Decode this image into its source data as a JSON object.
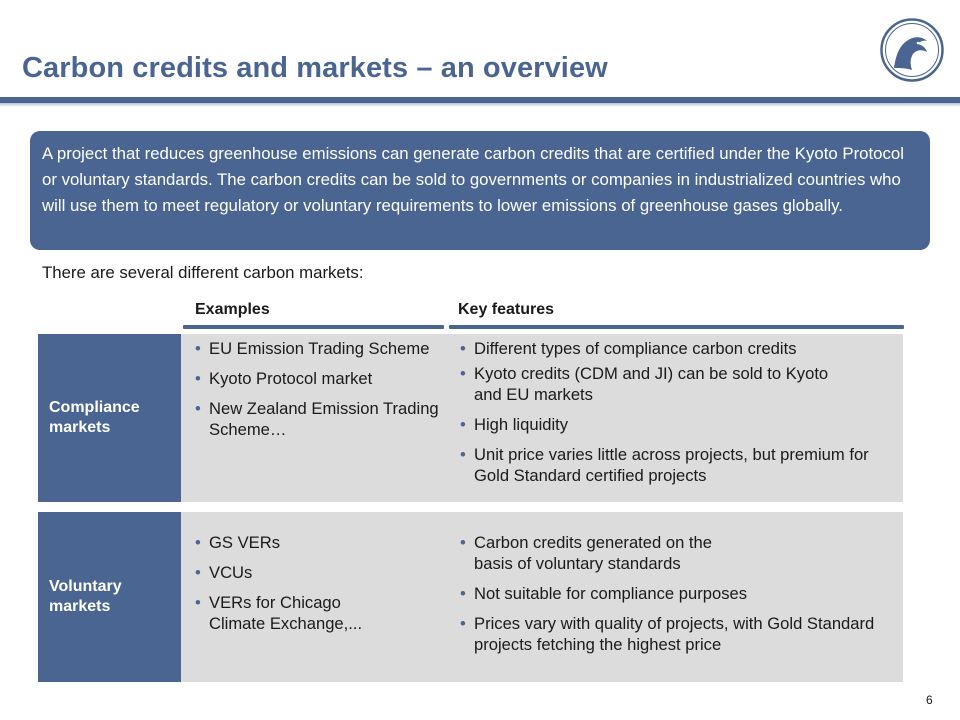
{
  "title": "Carbon credits and markets – an overview",
  "intro": "A project that reduces greenhouse emissions can generate carbon credits that are certified under the Kyoto Protocol or voluntary standards. The carbon credits can be sold to governments or companies in industrialized countries who will use them to meet regulatory or voluntary requirements to lower emissions of greenhouse gases globally.",
  "subheading": "There are several different carbon markets:",
  "columns": {
    "examples": "Examples",
    "features": "Key features"
  },
  "rows": [
    {
      "label": "Compliance markets",
      "examples": [
        "EU Emission Trading Scheme",
        "Kyoto Protocol market",
        "New Zealand Emission Trading Scheme…"
      ],
      "features": [
        "Different types of compliance carbon credits",
        "Kyoto credits (CDM and JI) can be sold to Kyoto and EU markets",
        "High liquidity",
        "Unit price varies little across projects, but premium for Gold Standard certified projects"
      ]
    },
    {
      "label": "Voluntary markets",
      "examples": [
        "GS VERs",
        "VCUs",
        "VERs for Chicago Climate Exchange,..."
      ],
      "features": [
        "Carbon credits generated on the basis of voluntary standards",
        "Not suitable for compliance purposes",
        "Prices vary with quality of projects, with Gold Standard projects fetching the highest price"
      ]
    }
  ],
  "bullet": "•",
  "page_number": "6",
  "logo_icon": "eagle-head-icon",
  "colors": {
    "brand": "#4a6591",
    "row_fill": "#dcdcdc"
  }
}
